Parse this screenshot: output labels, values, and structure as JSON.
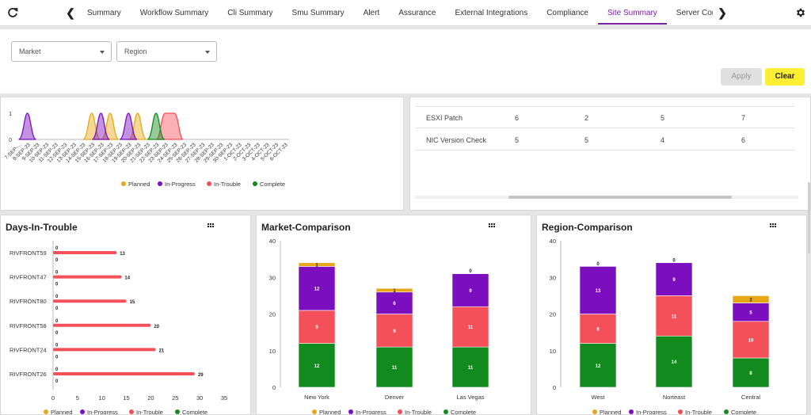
{
  "topbar": {
    "tabs": [
      "Summary",
      "Workflow Summary",
      "Cli Summary",
      "Smu Summary",
      "Alert",
      "Assurance",
      "External Integrations",
      "Compliance",
      "Site Summary",
      "Server Compl"
    ],
    "active_tab": "Site Summary"
  },
  "filters": {
    "market_label": "Market",
    "region_label": "Region",
    "apply_label": "Apply",
    "clear_label": "Clear"
  },
  "colors": {
    "planned": "#e6a817",
    "in_progress": "#7b0fbf",
    "in_trouble": "#f3505a",
    "complete": "#138a1e",
    "accent": "#7b1fa2",
    "clear_button": "#ffee33"
  },
  "table": {
    "rows": [
      {
        "name": "ESXI Patch",
        "values": [
          "6",
          "2",
          "5",
          "7"
        ]
      },
      {
        "name": "NIC Version Check",
        "values": [
          "5",
          "5",
          "4",
          "6"
        ]
      }
    ]
  },
  "legend": [
    "Planned",
    "In-Progress",
    "In-Trouble",
    "Complete"
  ],
  "days_in_trouble": {
    "title": "Days-In-Trouble"
  },
  "market_comparison": {
    "title": "Market-Comparison"
  },
  "region_comparison": {
    "title": "Region-Comparison"
  },
  "chart_data": [
    {
      "type": "area",
      "ylim": [
        0,
        1
      ],
      "yticks": [
        "0",
        "1"
      ],
      "categories": [
        "7-SEP-...",
        "8-SEP-23",
        "9-SEP-23",
        "10-SEP-23",
        "11-SEP-23",
        "12-SEP-23",
        "13-SEP-23",
        "14-SEP-23",
        "15-SEP-23",
        "16-SEP-23",
        "17-SEP-23",
        "18-SEP-23",
        "19-SEP-23",
        "20-SEP-23",
        "21-SEP-23",
        "22-SEP-23",
        "23-SEP-23",
        "24-SEP-23",
        "25-SEP-23",
        "26-SEP-23",
        "27-SEP-23",
        "28-SEP-23",
        "29-SEP-23",
        "30-SEP-23",
        "1-OCT-23",
        "2-OCT-23",
        "3-OCT-23",
        "4-OCT-23",
        "5-OCT-23",
        "6-OCT-23"
      ],
      "series": [
        {
          "name": "Planned",
          "values": [
            0,
            0,
            0,
            0,
            0,
            0,
            0,
            0,
            1,
            0,
            1,
            0,
            0,
            1,
            0,
            0,
            0,
            0,
            0,
            0,
            0,
            0,
            0,
            0,
            0,
            0,
            0,
            0,
            0,
            0
          ]
        },
        {
          "name": "In-Progress",
          "values": [
            0,
            1,
            0,
            0,
            0,
            0,
            0,
            0,
            0,
            1,
            0,
            0,
            1,
            0,
            0,
            0,
            0,
            0,
            0,
            0,
            0,
            0,
            0,
            0,
            0,
            0,
            0,
            0,
            0,
            0
          ]
        },
        {
          "name": "In-Trouble",
          "values": [
            0,
            0,
            0,
            0,
            0,
            0,
            0,
            0,
            0,
            0,
            0,
            0,
            0,
            0,
            0,
            0,
            1,
            1,
            0,
            0,
            0,
            0,
            0,
            0,
            0,
            0,
            0,
            0,
            0,
            0
          ]
        },
        {
          "name": "Complete",
          "values": [
            0,
            0,
            0,
            0,
            0,
            0,
            0,
            0,
            0,
            0,
            0,
            0,
            0,
            0,
            0,
            1,
            0,
            0,
            0,
            0,
            0,
            0,
            0,
            0,
            0,
            0,
            0,
            0,
            0,
            0
          ]
        }
      ]
    },
    {
      "type": "bar",
      "orientation": "horizontal",
      "title": "Days-In-Trouble",
      "categories": [
        "RIVFRONT59",
        "RIVFRONT47",
        "RIVFRONT80",
        "RIVFRONT58",
        "RIVFRONT24",
        "RIVFRONT26"
      ],
      "xlim": [
        0,
        35
      ],
      "xticks": [
        0,
        5,
        10,
        15,
        20,
        25,
        30,
        35
      ],
      "series": [
        {
          "name": "Planned",
          "values": [
            0,
            0,
            0,
            0,
            0,
            0
          ]
        },
        {
          "name": "In-Progress",
          "values": [
            0,
            0,
            0,
            0,
            0,
            0
          ]
        },
        {
          "name": "In-Trouble",
          "values": [
            13,
            14,
            15,
            20,
            21,
            29
          ]
        },
        {
          "name": "Complete",
          "values": [
            0,
            0,
            0,
            0,
            0,
            0
          ]
        }
      ]
    },
    {
      "type": "bar",
      "stacked": true,
      "title": "Market-Comparison",
      "categories": [
        "New York",
        "Denver",
        "Las Vegas"
      ],
      "ylim": [
        0,
        40
      ],
      "yticks": [
        0,
        10,
        20,
        30,
        40
      ],
      "series": [
        {
          "name": "Complete",
          "values": [
            12,
            11,
            11
          ]
        },
        {
          "name": "In-Trouble",
          "values": [
            9,
            9,
            11
          ]
        },
        {
          "name": "In-Progress",
          "values": [
            12,
            6,
            9
          ]
        },
        {
          "name": "Planned",
          "values": [
            1,
            1,
            0
          ]
        }
      ]
    },
    {
      "type": "bar",
      "stacked": true,
      "title": "Region-Comparison",
      "categories": [
        "West",
        "Norteast",
        "Central"
      ],
      "ylim": [
        0,
        40
      ],
      "yticks": [
        0,
        10,
        20,
        30,
        40
      ],
      "series": [
        {
          "name": "Complete",
          "values": [
            12,
            14,
            8
          ]
        },
        {
          "name": "In-Trouble",
          "values": [
            8,
            11,
            10
          ]
        },
        {
          "name": "In-Progress",
          "values": [
            13,
            9,
            5
          ]
        },
        {
          "name": "Planned",
          "values": [
            0,
            0,
            2
          ]
        }
      ]
    }
  ]
}
